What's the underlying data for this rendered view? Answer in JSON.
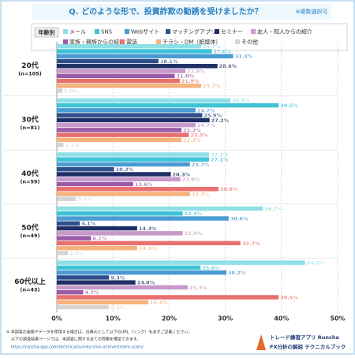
{
  "chart_data": {
    "type": "hbar-grouped",
    "title": "Q. どのような形で、投資詐欺の勧誘を受けましたか？",
    "subtitle": "※複数選択可",
    "legend_title": "年齢別",
    "categories": [
      "20代",
      "30代",
      "40代",
      "50代",
      "60代以上"
    ],
    "category_notes": [
      "(n=105)",
      "(n=81)",
      "(n=59)",
      "(n=49)",
      "(n=43)"
    ],
    "series": [
      {
        "name": "メール",
        "color": "#8ee0e6",
        "values": [
          25.7,
          30.9,
          27.1,
          36.7,
          44.2
        ],
        "value_labels": [
          "25.7%",
          "30.9%",
          "27.1%",
          "36.7%",
          "44.2%"
        ]
      },
      {
        "name": "SNS",
        "color": "#3ec3d6",
        "values": [
          27.6,
          39.5,
          27.1,
          22.4,
          25.6
        ],
        "value_labels": [
          "27.6%",
          "39.5%",
          "27.1%",
          "22.4%",
          "25.6%"
        ]
      },
      {
        "name": "Webサイト",
        "color": "#4a9bd1",
        "values": [
          31.4,
          24.7,
          23.7,
          30.6,
          30.2
        ],
        "value_labels": [
          "31.4%",
          "24.7%",
          "23.7%",
          "30.6%",
          "30.2%"
        ]
      },
      {
        "name": "マッチングアプリ",
        "color": "#2f4f8c",
        "values": [
          18.1,
          25.9,
          10.2,
          4.1,
          9.3
        ],
        "value_labels": [
          "18.1%",
          "25.9%",
          "10.2%",
          "4.1%",
          "9.3%"
        ]
      },
      {
        "name": "セミナー",
        "color": "#1f2f66",
        "values": [
          28.6,
          27.2,
          20.3,
          14.3,
          14.0
        ],
        "value_labels": [
          "28.6%",
          "27.2%",
          "20.3%",
          "14.3%",
          "14.0%"
        ]
      },
      {
        "name": "友人・知人からの紹介",
        "color": "#c79ac9",
        "values": [
          22.9,
          24.7,
          22.0,
          22.4,
          23.3
        ],
        "value_labels": [
          "22.9%",
          "24.7%",
          "22.0%",
          "22.4%",
          "23.3%"
        ]
      },
      {
        "name": "家族・親族からの紹介",
        "color": "#9c5ba8",
        "values": [
          21.0,
          22.2,
          13.6,
          6.1,
          4.7
        ],
        "value_labels": [
          "21.0%",
          "22.2%",
          "13.6%",
          "6.1%",
          "4.7%"
        ]
      },
      {
        "name": "電話",
        "color": "#e8706e",
        "values": [
          21.9,
          23.5,
          28.8,
          32.7,
          39.5
        ],
        "value_labels": [
          "21.9%",
          "23.5%",
          "28.8%",
          "32.7%",
          "39.5%"
        ]
      },
      {
        "name": "チラシ・DM（紙媒体）",
        "color": "#f6b27d",
        "values": [
          25.7,
          22.2,
          23.7,
          14.3,
          16.3
        ],
        "value_labels": [
          "25.7%",
          "22.2%",
          "23.7%",
          "14.3%",
          "16.3%"
        ]
      },
      {
        "name": "その他",
        "color": "#d4d4d4",
        "values": [
          1.0,
          1.2,
          3.4,
          2.0,
          9.3
        ],
        "value_labels": [
          "1.0%",
          "1.2%",
          "3.4%",
          "2.0%",
          "9.3%"
        ]
      }
    ],
    "xlim": [
      0,
      50
    ],
    "xticks": [
      {
        "value": 0,
        "label": "0%"
      },
      {
        "value": 10,
        "label": "10%"
      },
      {
        "value": 20,
        "label": "20%"
      },
      {
        "value": 30,
        "label": "30%"
      },
      {
        "value": 40,
        "label": "40%"
      },
      {
        "value": 50,
        "label": "50%"
      }
    ],
    "grid": true
  },
  "footer": {
    "notes": [
      "※ 本調査の画像やデータを使用する場合は、出典元として以下のURL（リンク）を必ずご記載ください。",
      "以下の調査結果ページでは、本調査に関する全ての情報を確認できます。"
    ],
    "url": "https://runcha-app.com/technical/survey-trick-of-investment-scam/",
    "brand": "トレード練習アプリ Runcha",
    "brand_sub": "FX分析の解説 テクニカルブック"
  }
}
